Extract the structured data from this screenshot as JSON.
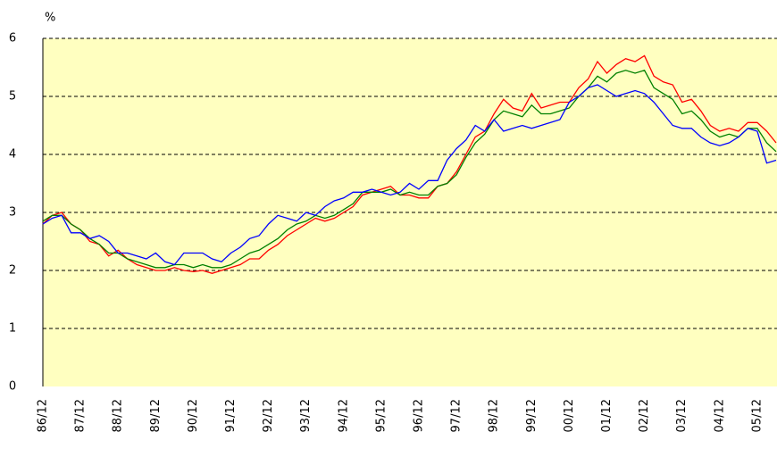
{
  "chart_data": {
    "type": "line",
    "y_label": "%",
    "categories": [
      "86/12",
      null,
      null,
      null,
      "87/12",
      null,
      null,
      null,
      "88/12",
      null,
      null,
      null,
      "89/12",
      null,
      null,
      null,
      "90/12",
      null,
      null,
      null,
      "91/12",
      null,
      null,
      null,
      "92/12",
      null,
      null,
      null,
      "93/12",
      null,
      null,
      null,
      "94/12",
      null,
      null,
      null,
      "95/12",
      null,
      null,
      null,
      "96/12",
      null,
      null,
      null,
      "97/12",
      null,
      null,
      null,
      "98/12",
      null,
      null,
      null,
      "99/12",
      null,
      null,
      null,
      "00/12",
      null,
      null,
      null,
      "01/12",
      null,
      null,
      null,
      "02/12",
      null,
      null,
      null,
      "03/12",
      null,
      null,
      null,
      "04/12",
      null,
      null,
      null,
      "05/12",
      null,
      null
    ],
    "series": [
      {
        "color": "#ff0000",
        "values": [
          2.8,
          2.95,
          3.0,
          2.8,
          2.7,
          2.5,
          2.45,
          2.25,
          2.35,
          2.2,
          2.1,
          2.05,
          2.0,
          2.0,
          2.05,
          2.0,
          1.98,
          2.0,
          1.95,
          2.0,
          2.05,
          2.1,
          2.2,
          2.2,
          2.35,
          2.45,
          2.6,
          2.7,
          2.8,
          2.9,
          2.85,
          2.9,
          3.0,
          3.1,
          3.3,
          3.35,
          3.4,
          3.45,
          3.3,
          3.3,
          3.25,
          3.25,
          3.45,
          3.5,
          3.7,
          4.0,
          4.3,
          4.4,
          4.7,
          4.95,
          4.8,
          4.75,
          5.05,
          4.8,
          4.85,
          4.9,
          4.9,
          5.15,
          5.3,
          5.6,
          5.4,
          5.55,
          5.65,
          5.6,
          5.7,
          5.35,
          5.25,
          5.2,
          4.9,
          4.95,
          4.75,
          4.5,
          4.4,
          4.45,
          4.4,
          4.55,
          4.55,
          4.4,
          4.2
        ]
      },
      {
        "color": "#008000",
        "values": [
          2.85,
          2.95,
          2.95,
          2.8,
          2.7,
          2.55,
          2.45,
          2.3,
          2.3,
          2.2,
          2.15,
          2.1,
          2.05,
          2.05,
          2.1,
          2.1,
          2.05,
          2.1,
          2.05,
          2.05,
          2.1,
          2.2,
          2.3,
          2.35,
          2.45,
          2.55,
          2.7,
          2.8,
          2.85,
          2.95,
          2.9,
          2.95,
          3.05,
          3.15,
          3.35,
          3.35,
          3.35,
          3.4,
          3.3,
          3.35,
          3.3,
          3.3,
          3.45,
          3.5,
          3.65,
          3.95,
          4.2,
          4.35,
          4.6,
          4.75,
          4.7,
          4.65,
          4.85,
          4.7,
          4.7,
          4.75,
          4.8,
          5.0,
          5.15,
          5.35,
          5.25,
          5.4,
          5.45,
          5.4,
          5.45,
          5.15,
          5.05,
          4.95,
          4.7,
          4.75,
          4.6,
          4.4,
          4.3,
          4.35,
          4.3,
          4.45,
          4.45,
          4.2,
          4.05
        ]
      },
      {
        "color": "#0000ff",
        "values": [
          2.8,
          2.9,
          2.95,
          2.65,
          2.65,
          2.55,
          2.6,
          2.5,
          2.3,
          2.3,
          2.25,
          2.2,
          2.3,
          2.15,
          2.1,
          2.3,
          2.3,
          2.3,
          2.2,
          2.15,
          2.3,
          2.4,
          2.55,
          2.6,
          2.8,
          2.95,
          2.9,
          2.85,
          3.0,
          2.95,
          3.1,
          3.2,
          3.25,
          3.35,
          3.35,
          3.4,
          3.35,
          3.3,
          3.35,
          3.5,
          3.4,
          3.55,
          3.55,
          3.9,
          4.1,
          4.25,
          4.5,
          4.4,
          4.6,
          4.4,
          4.45,
          4.5,
          4.45,
          4.5,
          4.55,
          4.6,
          4.9,
          5.0,
          5.15,
          5.2,
          5.1,
          5.0,
          5.05,
          5.1,
          5.05,
          4.9,
          4.7,
          4.5,
          4.45,
          4.45,
          4.3,
          4.2,
          4.15,
          4.2,
          4.3,
          4.45,
          4.4,
          3.85,
          3.9
        ]
      }
    ],
    "ylim": [
      0,
      6
    ],
    "yticks": [
      0,
      1,
      2,
      3,
      4,
      5,
      6
    ],
    "grid": true,
    "background": "#ffffc0"
  }
}
